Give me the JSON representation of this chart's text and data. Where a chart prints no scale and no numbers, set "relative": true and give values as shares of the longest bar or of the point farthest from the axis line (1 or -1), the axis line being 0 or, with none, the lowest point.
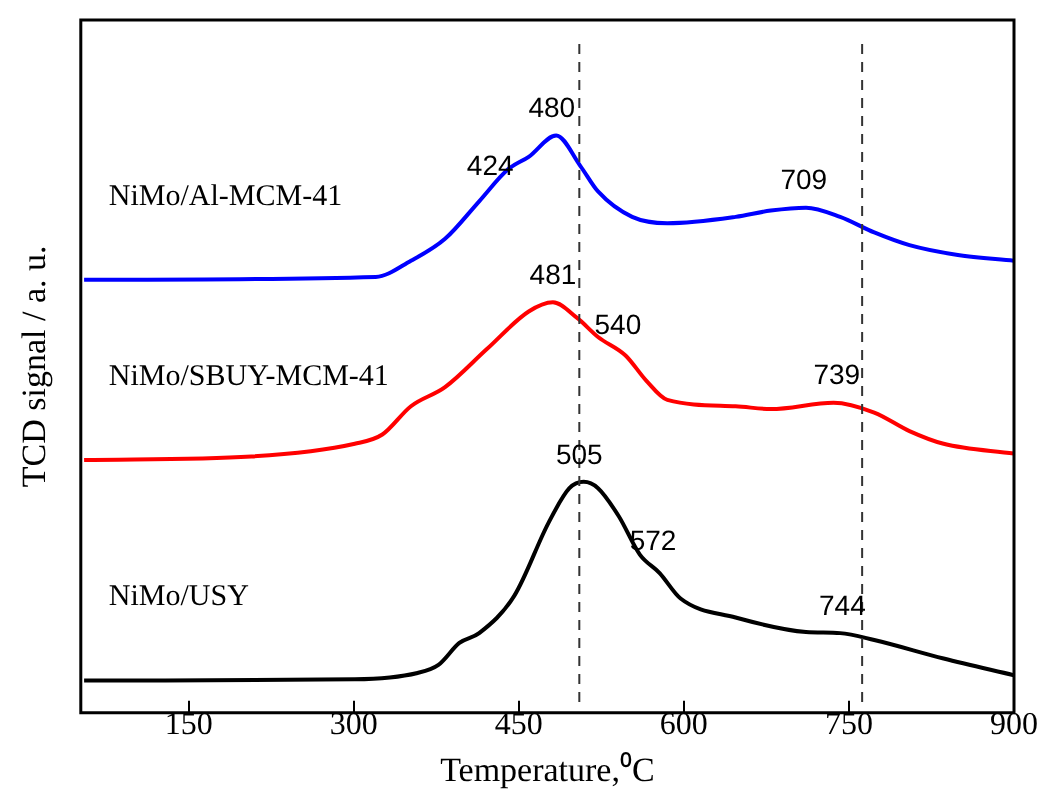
{
  "chart_data": {
    "type": "line",
    "xlabel": "Temperature,⁰C",
    "ylabel": "TCD signal / a. u.",
    "relative": true,
    "xlim": [
      52,
      900
    ],
    "xticks": [
      150,
      300,
      450,
      600,
      750,
      900
    ],
    "grid": false,
    "legend": false,
    "marker": "none",
    "series": [
      {
        "name": "NiMo/Al-MCM-41",
        "color": "#0000ff",
        "x": [
          55,
          320,
          352,
          383,
          414,
          440,
          459,
          484,
          506,
          522,
          553,
          585,
          647,
          679,
          711,
          742,
          773,
          805,
          849,
          900
        ],
        "values": [
          0.75,
          0.755,
          0.783,
          0.821,
          0.886,
          0.941,
          0.963,
          1.0,
          0.947,
          0.903,
          0.859,
          0.848,
          0.859,
          0.87,
          0.875,
          0.859,
          0.832,
          0.81,
          0.793,
          0.783
        ]
      },
      {
        "name": "NiMo/SBUY-MCM-41",
        "color": "#ff0000",
        "x": [
          55,
          207,
          301,
          326,
          352,
          383,
          421,
          459,
          481,
          503,
          522,
          547,
          566,
          585,
          647,
          679,
          736,
          773,
          805,
          836,
          900
        ],
        "values": [
          0.438,
          0.444,
          0.466,
          0.482,
          0.531,
          0.564,
          0.63,
          0.695,
          0.711,
          0.684,
          0.651,
          0.619,
          0.575,
          0.542,
          0.531,
          0.526,
          0.537,
          0.52,
          0.488,
          0.466,
          0.449
        ]
      },
      {
        "name": "NiMo/USY",
        "color": "#000000",
        "x": [
          55,
          301,
          358,
          377,
          396,
          414,
          446,
          477,
          496,
          509,
          522,
          541,
          560,
          578,
          597,
          647,
          711,
          742,
          773,
          836,
          900
        ],
        "values": [
          0.056,
          0.058,
          0.069,
          0.083,
          0.121,
          0.138,
          0.203,
          0.329,
          0.389,
          0.4,
          0.389,
          0.34,
          0.274,
          0.242,
          0.198,
          0.165,
          0.14,
          0.138,
          0.126,
          0.094,
          0.065
        ]
      }
    ],
    "ref_lines": [
      {
        "axis": "x",
        "value": 505,
        "color": "#333333",
        "line_style": "dashed"
      },
      {
        "axis": "x",
        "value": 762,
        "color": "#333333",
        "line_style": "dashed"
      }
    ],
    "annotations": [
      {
        "text": "424",
        "x": 424,
        "y": 0.9
      },
      {
        "text": "480",
        "x": 480,
        "y": 1.0
      },
      {
        "text": "709",
        "x": 709,
        "y": 0.875
      },
      {
        "text": "481",
        "x": 481,
        "y": 0.711
      },
      {
        "text": "540",
        "x": 540,
        "y": 0.625
      },
      {
        "text": "739",
        "x": 739,
        "y": 0.537
      },
      {
        "text": "505",
        "x": 505,
        "y": 0.4
      },
      {
        "text": "572",
        "x": 572,
        "y": 0.25
      },
      {
        "text": "744",
        "x": 744,
        "y": 0.138
      }
    ]
  }
}
